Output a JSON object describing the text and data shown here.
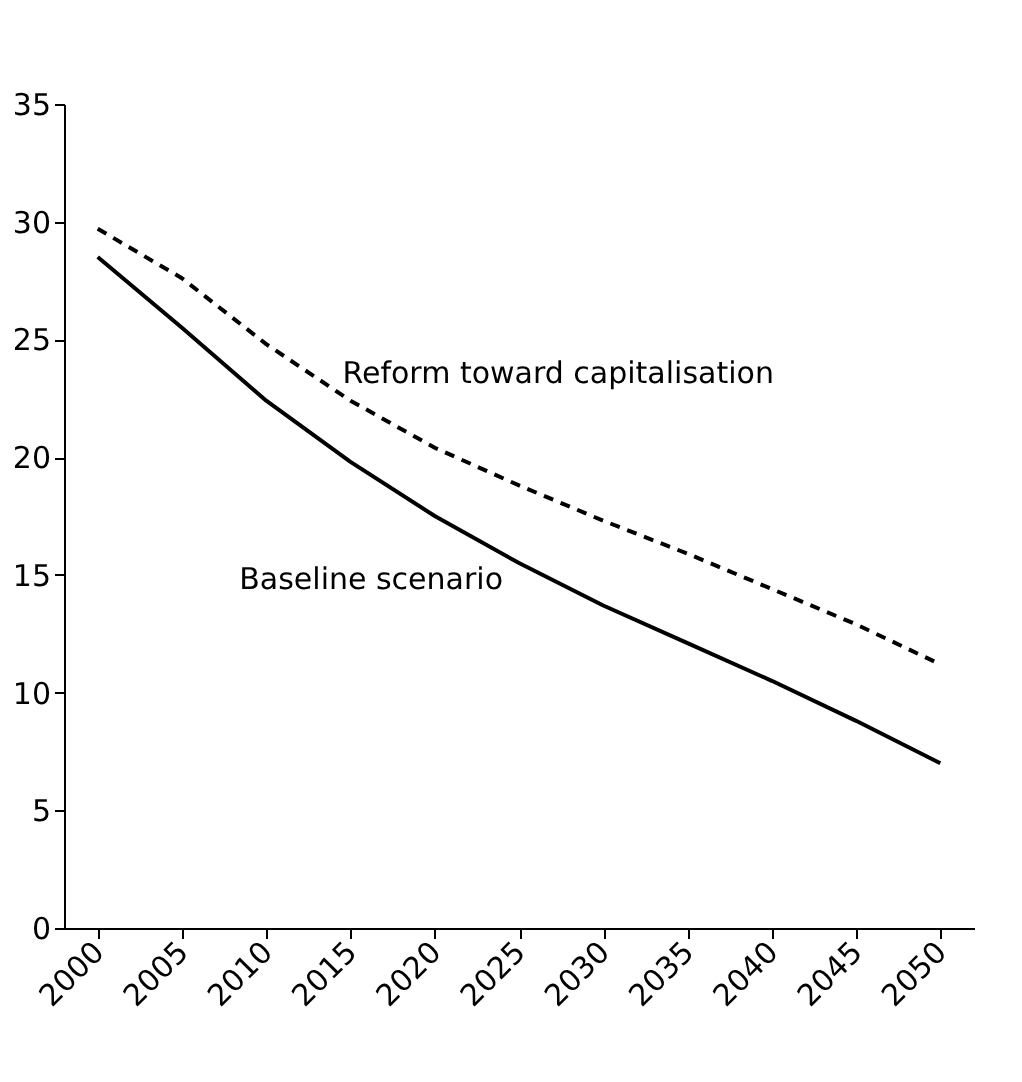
{
  "chart_data": {
    "type": "line",
    "categories": [
      "2000",
      "2005",
      "2010",
      "2015",
      "2020",
      "2025",
      "2030",
      "2035",
      "2040",
      "2045",
      "2050"
    ],
    "series": [
      {
        "name": "Reform toward capitalisation",
        "color": "#000000",
        "line_style": "dashed",
        "values": [
          29.7,
          27.6,
          24.8,
          22.4,
          20.4,
          18.8,
          17.3,
          15.9,
          14.4,
          12.9,
          11.2
        ]
      },
      {
        "name": "Baseline scenario",
        "color": "#000000",
        "line_style": "solid",
        "values": [
          28.5,
          25.5,
          22.4,
          19.8,
          17.5,
          15.5,
          13.7,
          12.1,
          10.5,
          8.8,
          7.0
        ]
      }
    ],
    "ylim": [
      0,
      35
    ],
    "yticks": [
      0,
      5,
      10,
      15,
      20,
      25,
      30,
      35
    ],
    "grid": false,
    "legend": false,
    "marker": "none"
  }
}
